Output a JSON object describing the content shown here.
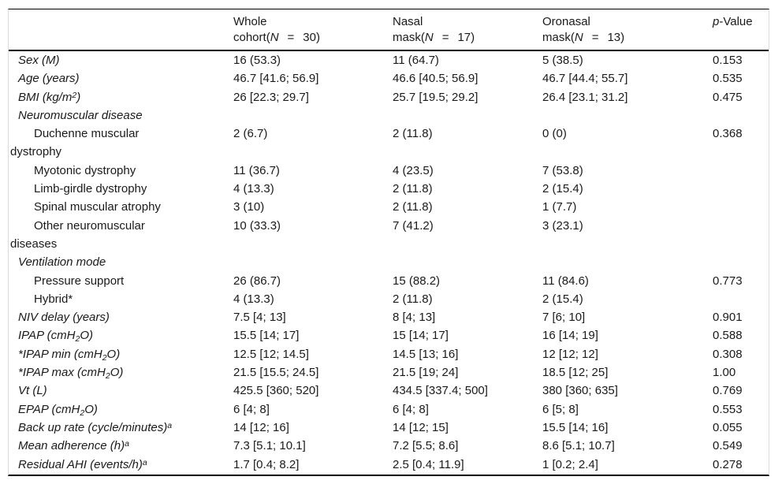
{
  "colors": {
    "text": "#1a1a1a",
    "rule_strong": "#000000",
    "rule_faint": "#dcdcdc",
    "background": "#ffffff"
  },
  "table": {
    "header": {
      "label_col": "",
      "groups": [
        {
          "line1": "Whole",
          "line2": [
            {
              "t": "text",
              "v": "cohort("
            },
            {
              "t": "i",
              "v": "N"
            },
            {
              "t": "eq",
              "v": "="
            },
            {
              "t": "text",
              "v": "30)"
            }
          ]
        },
        {
          "line1": "Nasal",
          "line2": [
            {
              "t": "text",
              "v": "mask("
            },
            {
              "t": "i",
              "v": "N"
            },
            {
              "t": "eq",
              "v": "="
            },
            {
              "t": "text",
              "v": "17)"
            }
          ]
        },
        {
          "line1": "Oronasal",
          "line2": [
            {
              "t": "text",
              "v": "mask("
            },
            {
              "t": "i",
              "v": "N"
            },
            {
              "t": "eq",
              "v": "="
            },
            {
              "t": "text",
              "v": "13)"
            }
          ]
        }
      ],
      "pvalue": [
        {
          "t": "i",
          "v": "p"
        },
        {
          "t": "text",
          "v": "-Value"
        }
      ]
    },
    "rows": [
      {
        "style": "main",
        "label": "Sex (M)",
        "cells": [
          "16 (53.3)",
          "11 (64.7)",
          "5 (38.5)",
          "0.153"
        ]
      },
      {
        "style": "main",
        "label": "Age (years)",
        "cells": [
          "46.7 [41.6; 56.9]",
          "46.6 [40.5; 56.9]",
          "46.7 [44.4; 55.7]",
          "0.535"
        ]
      },
      {
        "style": "main",
        "label": [
          {
            "t": "text",
            "v": "BMI (kg/m"
          },
          {
            "t": "sup",
            "v": "2"
          },
          {
            "t": "text",
            "v": ")"
          }
        ],
        "cells": [
          "26 [22.3; 29.7]",
          "25.7 [19.5; 29.2]",
          "26.4 [23.1; 31.2]",
          "0.475"
        ]
      },
      {
        "style": "section",
        "label": "Neuromuscular disease",
        "cells": [
          "",
          "",
          "",
          ""
        ]
      },
      {
        "style": "sub",
        "label": "Duchenne muscular\ndystrophy",
        "cells": [
          "2 (6.7)",
          "2 (11.8)",
          "0 (0)",
          "0.368"
        ]
      },
      {
        "style": "sub",
        "label": "Myotonic dystrophy",
        "cells": [
          "11 (36.7)",
          "4 (23.5)",
          "7 (53.8)",
          ""
        ]
      },
      {
        "style": "sub",
        "label": "Limb-girdle dystrophy",
        "cells": [
          "4 (13.3)",
          "2 (11.8)",
          "2 (15.4)",
          ""
        ]
      },
      {
        "style": "sub",
        "label": "Spinal muscular atrophy",
        "cells": [
          "3 (10)",
          "2 (11.8)",
          "1 (7.7)",
          ""
        ]
      },
      {
        "style": "sub",
        "label": "Other neuromuscular\ndiseases",
        "cells": [
          "10 (33.3)",
          "7 (41.2)",
          "3 (23.1)",
          ""
        ]
      },
      {
        "style": "section",
        "label": "Ventilation mode",
        "cells": [
          "",
          "",
          "",
          ""
        ]
      },
      {
        "style": "sub",
        "label": "Pressure support",
        "cells": [
          "26 (86.7)",
          "15 (88.2)",
          "11 (84.6)",
          "0.773"
        ]
      },
      {
        "style": "sub",
        "label": "Hybrid*",
        "cells": [
          "4 (13.3)",
          "2 (11.8)",
          "2 (15.4)",
          ""
        ]
      },
      {
        "style": "main",
        "label": "NIV delay (years)",
        "cells": [
          "7.5 [4; 13]",
          "8 [4; 13]",
          "7 [6; 10]",
          "0.901"
        ]
      },
      {
        "style": "main",
        "label": [
          {
            "t": "text",
            "v": "IPAP (cmH"
          },
          {
            "t": "sub",
            "v": "2"
          },
          {
            "t": "text",
            "v": "O)"
          }
        ],
        "cells": [
          "15.5 [14; 17]",
          "15 [14; 17]",
          "16 [14; 19]",
          "0.588"
        ]
      },
      {
        "style": "main",
        "label": [
          {
            "t": "text",
            "v": "*IPAP min (cmH"
          },
          {
            "t": "sub",
            "v": "2"
          },
          {
            "t": "text",
            "v": "O)"
          }
        ],
        "cells": [
          "12.5 [12; 14.5]",
          "14.5 [13; 16]",
          "12 [12; 12]",
          "0.308"
        ]
      },
      {
        "style": "main",
        "label": [
          {
            "t": "text",
            "v": "*IPAP max (cmH"
          },
          {
            "t": "sub",
            "v": "2"
          },
          {
            "t": "text",
            "v": "O)"
          }
        ],
        "cells": [
          "21.5 [15.5; 24.5]",
          "21.5 [19; 24]",
          "18.5 [12; 25]",
          "1.00"
        ]
      },
      {
        "style": "main",
        "label": "Vt (L)",
        "cells": [
          "425.5 [360; 520]",
          "434.5 [337.4; 500]",
          "380 [360; 635]",
          "0.769"
        ]
      },
      {
        "style": "main",
        "label": [
          {
            "t": "text",
            "v": "EPAP (cmH"
          },
          {
            "t": "sub",
            "v": "2"
          },
          {
            "t": "text",
            "v": "O)"
          }
        ],
        "cells": [
          "6 [4; 8]",
          "6 [4; 8]",
          "6 [5; 8]",
          "0.553"
        ]
      },
      {
        "style": "main",
        "label": [
          {
            "t": "text",
            "v": "Back up rate (cycle/minutes)"
          },
          {
            "t": "sup",
            "v": "a"
          }
        ],
        "cells": [
          "14 [12; 16]",
          "14 [12; 15]",
          "15.5 [14; 16]",
          "0.055"
        ]
      },
      {
        "style": "main",
        "label": [
          {
            "t": "text",
            "v": "Mean adherence (h)"
          },
          {
            "t": "sup",
            "v": "a"
          }
        ],
        "cells": [
          "7.3 [5.1; 10.1]",
          "7.2 [5.5; 8.6]",
          "8.6 [5.1; 10.7]",
          "0.549"
        ]
      },
      {
        "style": "main",
        "label": [
          {
            "t": "text",
            "v": "Residual AHI (events/h)"
          },
          {
            "t": "sup",
            "v": "a"
          }
        ],
        "cells": [
          "1.7 [0.4; 8.2]",
          "2.5 [0.4; 11.9]",
          "1 [0.2; 2.4]",
          "0.278"
        ]
      }
    ]
  }
}
